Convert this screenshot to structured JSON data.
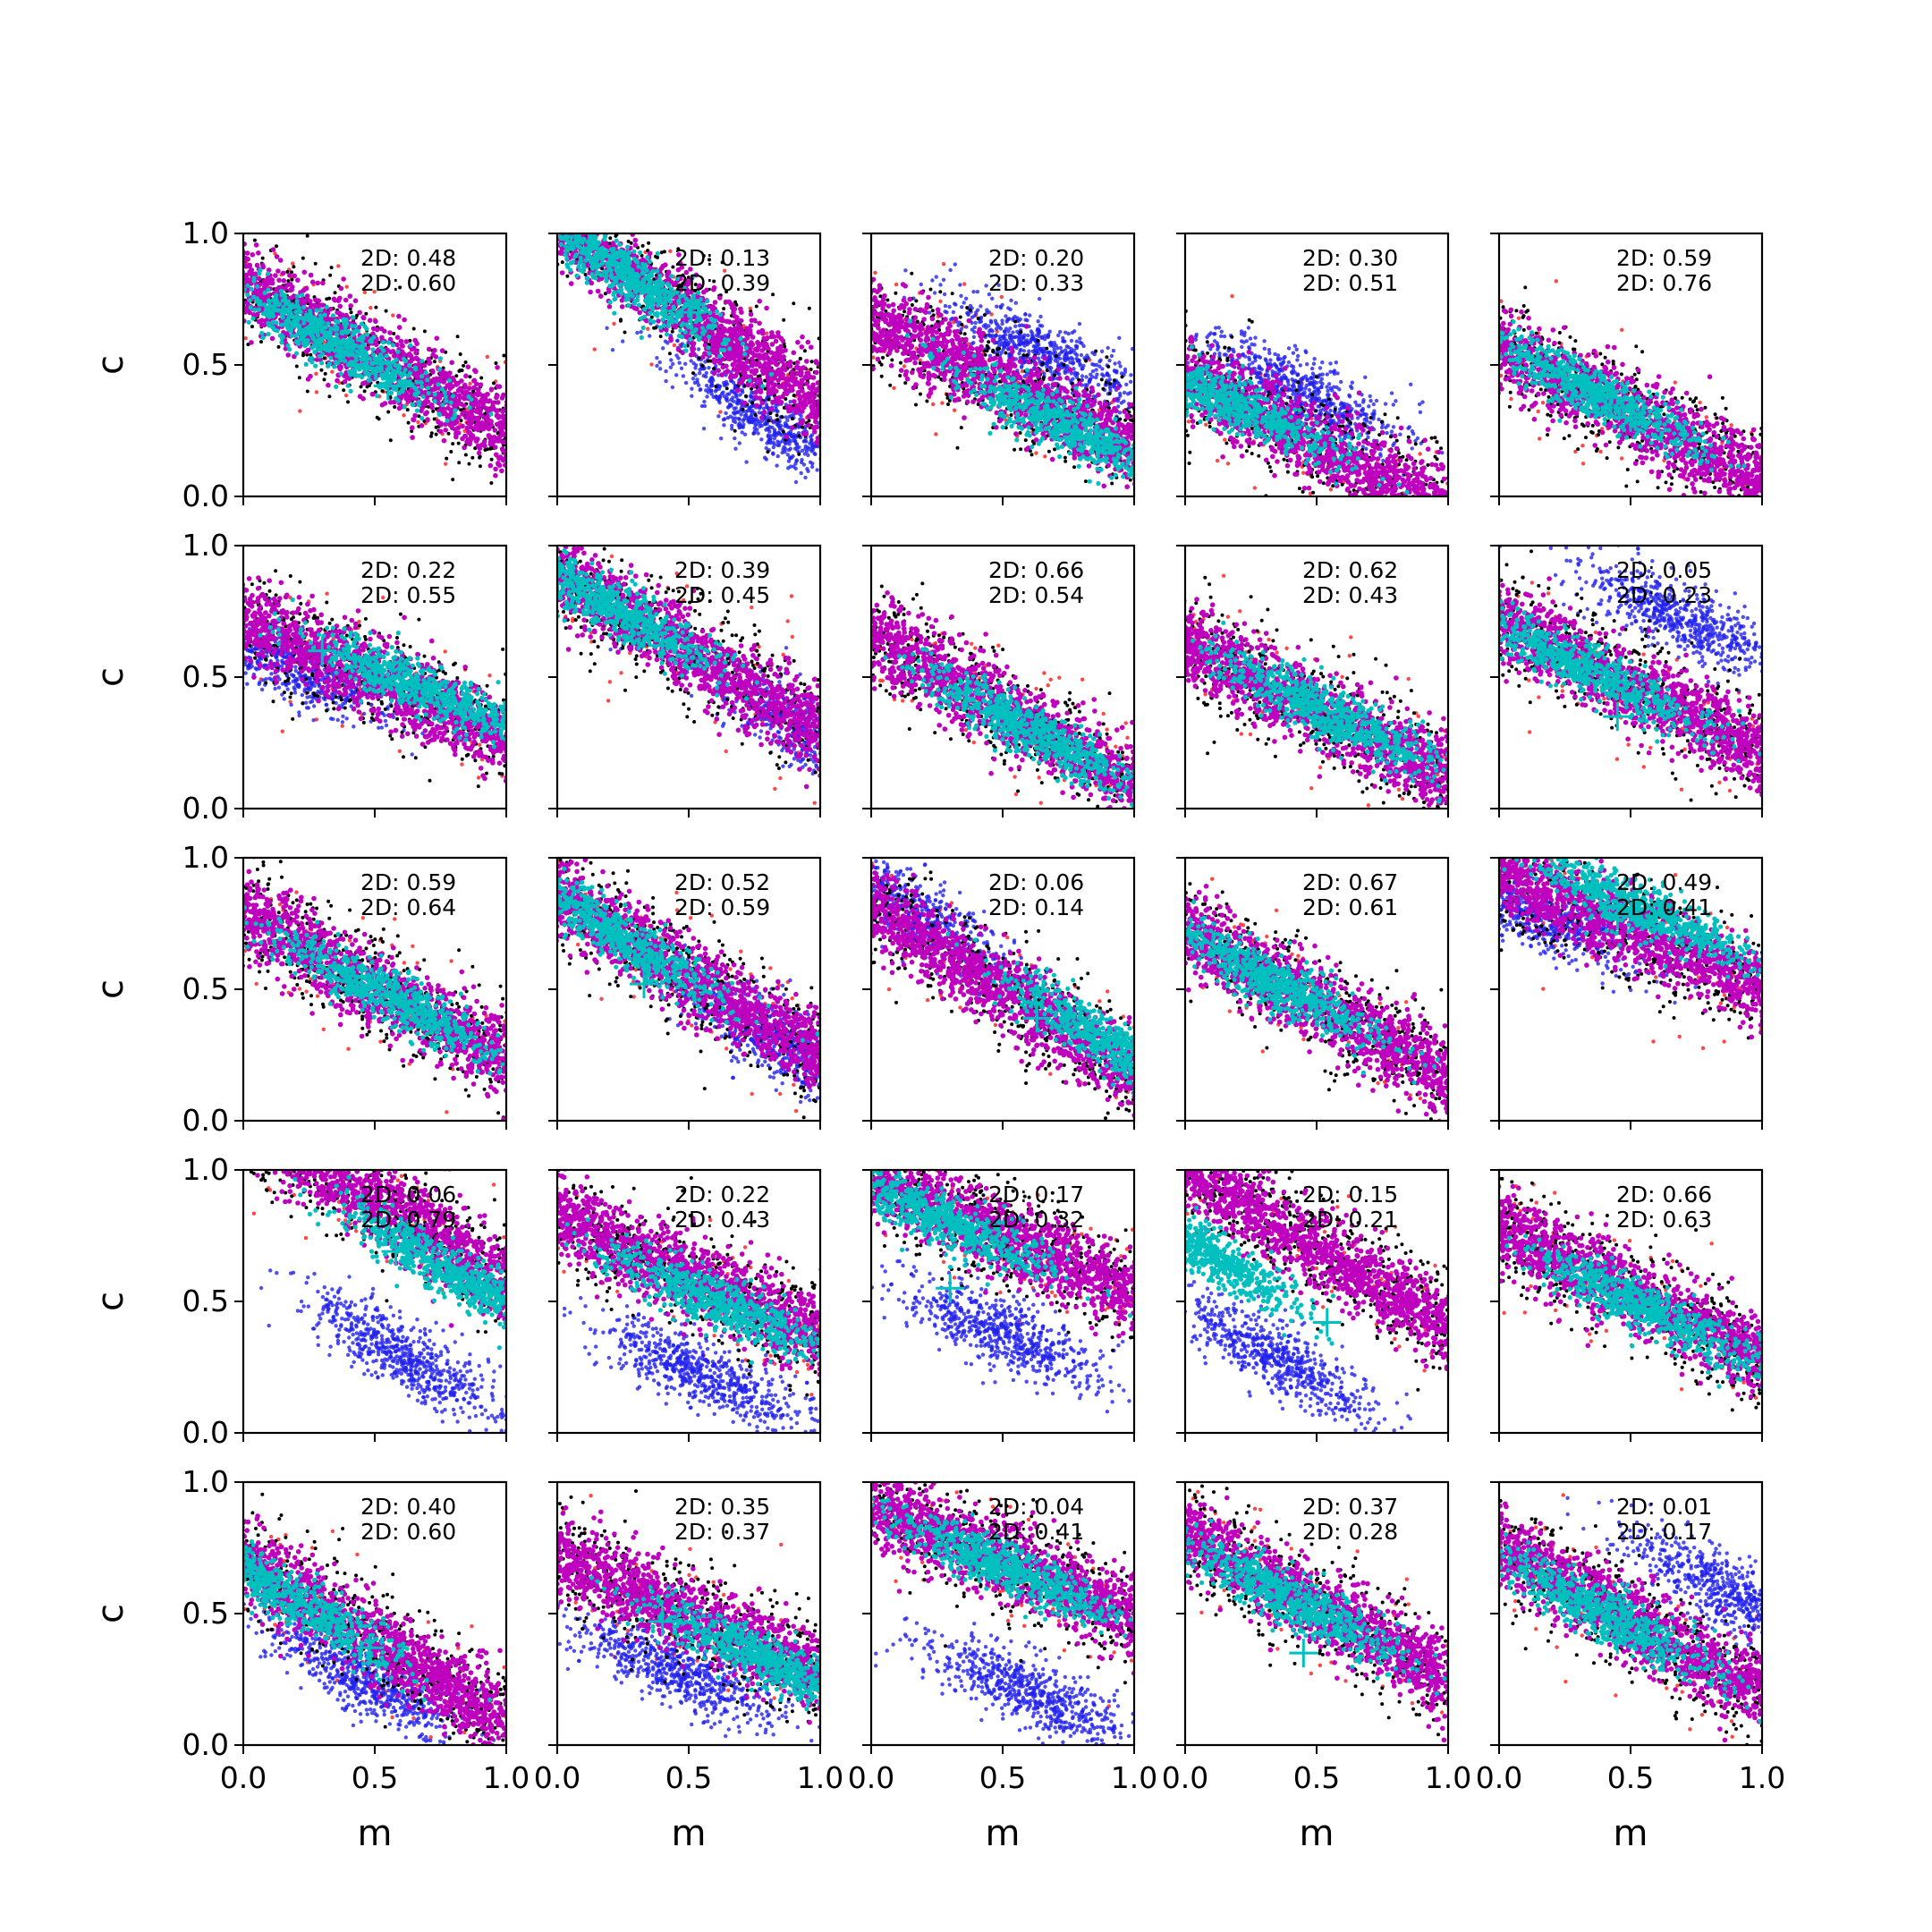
{
  "chart_data": {
    "type": "scatter",
    "grid": {
      "rows": 5,
      "cols": 5
    },
    "xlabel": "m",
    "ylabel": "c",
    "xlim": [
      0.0,
      1.0
    ],
    "ylim": [
      0.0,
      1.0
    ],
    "xticks": [
      "0.0",
      "0.5",
      "1.0"
    ],
    "yticks": [
      "0.0",
      "0.5",
      "1.0"
    ],
    "annotation_prefix": "2D:",
    "colors": {
      "outer_red": "#ff3333",
      "black": "#000000",
      "blue": "#2222ee",
      "magenta": "#bf00bf",
      "cyan": "#00bfbf",
      "marker": "#00bfbf"
    },
    "panels": [
      {
        "row": 0,
        "col": 0,
        "stat1": "0.48",
        "stat2": "0.60",
        "slope": -0.55,
        "intercept": 0.8,
        "cyan_center": [
          0.35,
          0.58
        ],
        "blue_center": null,
        "blue_intercept": null,
        "marker": [
          0.55,
          0.42
        ]
      },
      {
        "row": 0,
        "col": 1,
        "stat1": "0.13",
        "stat2": "0.39",
        "slope": -0.7,
        "intercept": 1.05,
        "cyan_center": [
          0.25,
          0.85
        ],
        "blue_center": [
          0.78,
          0.3
        ],
        "blue_intercept": 0.85,
        "marker": [
          0.51,
          0.7
        ]
      },
      {
        "row": 0,
        "col": 2,
        "stat1": "0.20",
        "stat2": "0.33",
        "slope": -0.5,
        "intercept": 0.68,
        "cyan_center": [
          0.75,
          0.26
        ],
        "blue_center": [
          0.65,
          0.55
        ],
        "blue_intercept": 0.86,
        "marker": [
          0.55,
          0.38
        ]
      },
      {
        "row": 0,
        "col": 3,
        "stat1": "0.30",
        "stat2": "0.51",
        "slope": -0.5,
        "intercept": 0.45,
        "cyan_center": [
          0.15,
          0.37
        ],
        "blue_center": [
          0.45,
          0.4
        ],
        "blue_intercept": 0.62,
        "marker": [
          0.36,
          0.27
        ]
      },
      {
        "row": 0,
        "col": 4,
        "stat1": "0.59",
        "stat2": "0.76",
        "slope": -0.5,
        "intercept": 0.56,
        "cyan_center": [
          0.35,
          0.4
        ],
        "blue_center": null,
        "blue_intercept": null,
        "marker": [
          0.5,
          0.3
        ]
      },
      {
        "row": 1,
        "col": 0,
        "stat1": "0.22",
        "stat2": "0.55",
        "slope": -0.45,
        "intercept": 0.72,
        "cyan_center": [
          0.7,
          0.45
        ],
        "blue_center": [
          0.15,
          0.55
        ],
        "blue_intercept": 0.62,
        "marker": [
          0.3,
          0.6
        ]
      },
      {
        "row": 1,
        "col": 1,
        "stat1": "0.39",
        "stat2": "0.45",
        "slope": -0.6,
        "intercept": 0.9,
        "cyan_center": [
          0.2,
          0.78
        ],
        "blue_center": [
          0.95,
          0.3
        ],
        "blue_intercept": 0.85,
        "marker": [
          0.4,
          0.62
        ]
      },
      {
        "row": 1,
        "col": 2,
        "stat1": "0.66",
        "stat2": "0.54",
        "slope": -0.55,
        "intercept": 0.65,
        "cyan_center": [
          0.6,
          0.3
        ],
        "blue_center": null,
        "blue_intercept": null,
        "marker": [
          0.48,
          0.38
        ]
      },
      {
        "row": 1,
        "col": 3,
        "stat1": "0.62",
        "stat2": "0.43",
        "slope": -0.5,
        "intercept": 0.62,
        "cyan_center": [
          0.55,
          0.36
        ],
        "blue_center": null,
        "blue_intercept": null,
        "marker": [
          0.45,
          0.4
        ]
      },
      {
        "row": 1,
        "col": 4,
        "stat1": "0.05",
        "stat2": "0.23",
        "slope": -0.5,
        "intercept": 0.72,
        "cyan_center": [
          0.35,
          0.52
        ],
        "blue_center": [
          0.7,
          0.72
        ],
        "blue_intercept": 1.05,
        "marker": [
          0.45,
          0.35
        ]
      },
      {
        "row": 2,
        "col": 0,
        "stat1": "0.59",
        "stat2": "0.64",
        "slope": -0.55,
        "intercept": 0.78,
        "cyan_center": [
          0.55,
          0.48
        ],
        "blue_center": null,
        "blue_intercept": null,
        "marker": [
          0.45,
          0.55
        ]
      },
      {
        "row": 2,
        "col": 1,
        "stat1": "0.52",
        "stat2": "0.59",
        "slope": -0.6,
        "intercept": 0.85,
        "cyan_center": [
          0.2,
          0.72
        ],
        "blue_center": [
          0.85,
          0.3
        ],
        "blue_intercept": 0.8,
        "marker": [
          0.33,
          0.52
        ]
      },
      {
        "row": 2,
        "col": 2,
        "stat1": "0.06",
        "stat2": "0.14",
        "slope": -0.65,
        "intercept": 0.82,
        "cyan_center": [
          0.92,
          0.28
        ],
        "blue_center": [
          0.15,
          0.8
        ],
        "blue_intercept": 0.92,
        "marker": [
          0.63,
          0.39
        ]
      },
      {
        "row": 2,
        "col": 3,
        "stat1": "0.67",
        "stat2": "0.61",
        "slope": -0.55,
        "intercept": 0.72,
        "cyan_center": [
          0.35,
          0.52
        ],
        "blue_center": null,
        "blue_intercept": null,
        "marker": [
          0.5,
          0.45
        ]
      },
      {
        "row": 2,
        "col": 4,
        "stat1": "0.49",
        "stat2": "0.41",
        "slope": -0.45,
        "intercept": 0.95,
        "cyan_center": [
          0.55,
          0.8
        ],
        "blue_center": [
          0.15,
          0.78
        ],
        "blue_intercept": 0.85,
        "marker": [
          0.45,
          0.78
        ]
      },
      {
        "row": 3,
        "col": 0,
        "stat1": "0.06",
        "stat2": "0.79",
        "slope": -0.6,
        "intercept": 1.18,
        "cyan_center": [
          0.78,
          0.62
        ],
        "blue_center": [
          0.6,
          0.3
        ],
        "blue_intercept": 0.65,
        "marker": [
          0.58,
          0.69
        ]
      },
      {
        "row": 3,
        "col": 1,
        "stat1": "0.22",
        "stat2": "0.43",
        "slope": -0.45,
        "intercept": 0.82,
        "cyan_center": [
          0.6,
          0.5
        ],
        "blue_center": [
          0.55,
          0.22
        ],
        "blue_intercept": 0.48,
        "marker": [
          0.45,
          0.55
        ]
      },
      {
        "row": 3,
        "col": 2,
        "stat1": "0.17",
        "stat2": "0.32",
        "slope": -0.45,
        "intercept": 0.98,
        "cyan_center": [
          0.25,
          0.82
        ],
        "blue_center": [
          0.5,
          0.38
        ],
        "blue_intercept": 0.62,
        "marker": [
          0.3,
          0.55
        ]
      },
      {
        "row": 3,
        "col": 3,
        "stat1": "0.15",
        "stat2": "0.21",
        "slope": -0.6,
        "intercept": 1.0,
        "cyan_center": [
          0.05,
          0.7
        ],
        "blue_center": [
          0.35,
          0.28
        ],
        "blue_intercept": 0.5,
        "marker": [
          0.54,
          0.42
        ]
      },
      {
        "row": 3,
        "col": 4,
        "stat1": "0.66",
        "stat2": "0.63",
        "slope": -0.5,
        "intercept": 0.78,
        "cyan_center": [
          0.55,
          0.48
        ],
        "blue_center": null,
        "blue_intercept": null,
        "marker": [
          0.45,
          0.5
        ]
      },
      {
        "row": 4,
        "col": 0,
        "stat1": "0.40",
        "stat2": "0.60",
        "slope": -0.6,
        "intercept": 0.7,
        "cyan_center": [
          0.15,
          0.58
        ],
        "blue_center": [
          0.45,
          0.25
        ],
        "blue_intercept": 0.5,
        "marker": [
          0.48,
          0.37
        ]
      },
      {
        "row": 4,
        "col": 1,
        "stat1": "0.35",
        "stat2": "0.37",
        "slope": -0.45,
        "intercept": 0.72,
        "cyan_center": [
          0.8,
          0.32
        ],
        "blue_center": [
          0.45,
          0.28
        ],
        "blue_intercept": 0.52,
        "marker": [
          0.4,
          0.47
        ]
      },
      {
        "row": 4,
        "col": 2,
        "stat1": "0.04",
        "stat2": "0.41",
        "slope": -0.45,
        "intercept": 0.93,
        "cyan_center": [
          0.5,
          0.68
        ],
        "blue_center": [
          0.6,
          0.2
        ],
        "blue_intercept": 0.48,
        "marker": [
          0.45,
          0.68
        ]
      },
      {
        "row": 4,
        "col": 3,
        "stat1": "0.37",
        "stat2": "0.28",
        "slope": -0.55,
        "intercept": 0.8,
        "cyan_center": [
          0.4,
          0.55
        ],
        "blue_center": null,
        "blue_intercept": null,
        "marker": [
          0.45,
          0.35
        ]
      },
      {
        "row": 4,
        "col": 4,
        "stat1": "0.01",
        "stat2": "0.17",
        "slope": -0.55,
        "intercept": 0.75,
        "cyan_center": [
          0.4,
          0.5
        ],
        "blue_center": [
          0.88,
          0.58
        ],
        "blue_intercept": 1.05,
        "marker": [
          0.45,
          0.4
        ]
      }
    ]
  }
}
